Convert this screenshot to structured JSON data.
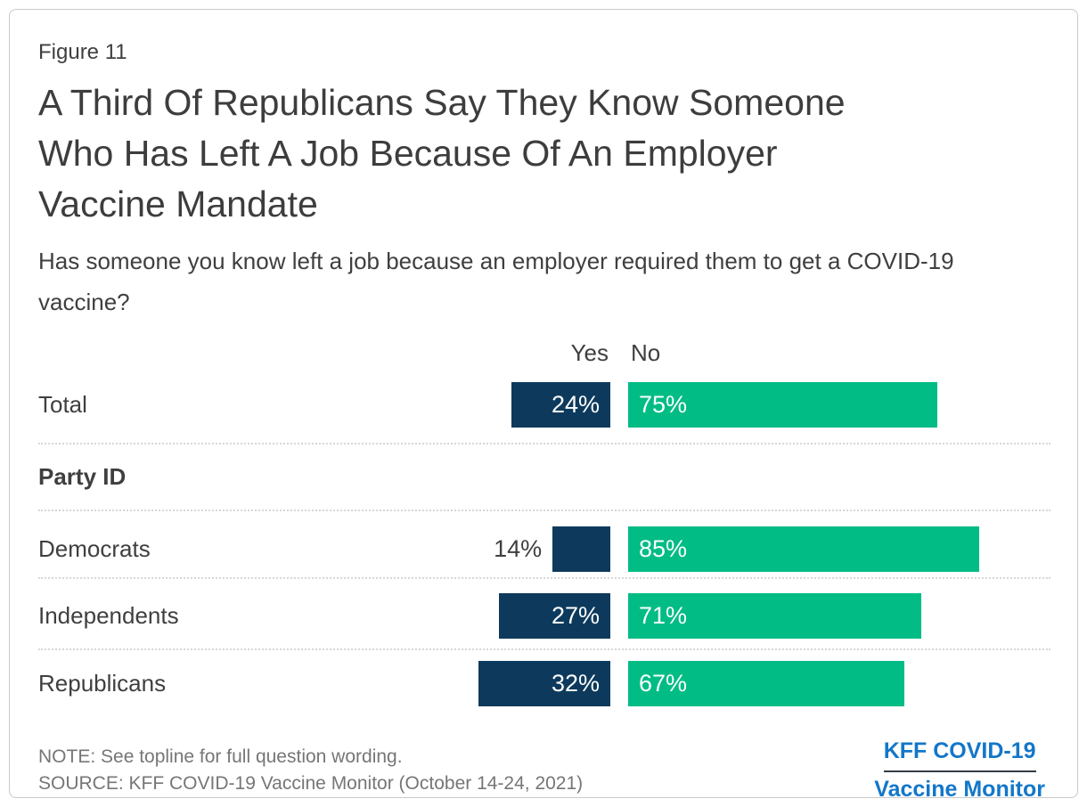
{
  "figure_label": "Figure 11",
  "title_lines": [
    "A Third Of Republicans Say They Know Someone",
    "Who Has Left A Job Because Of An Employer",
    "Vaccine Mandate"
  ],
  "subtitle": "Has someone you know left a job because an employer required them to get a COVID-19 vaccine?",
  "chart_data": {
    "type": "bar",
    "orientation": "horizontal-paired",
    "column_headers": {
      "yes": "Yes",
      "no": "No"
    },
    "series": [
      {
        "name": "Yes",
        "color": "#0d3a5c"
      },
      {
        "name": "No",
        "color": "#01bc85"
      }
    ],
    "value_format": "percent",
    "xlim": [
      0,
      100
    ],
    "rows": [
      {
        "label": "Total",
        "yes": 24,
        "no": 75,
        "yes_text": "24%",
        "no_text": "75%"
      },
      {
        "label": "Party ID",
        "section": true
      },
      {
        "label": "Democrats",
        "yes": 14,
        "no": 85,
        "yes_text": "14%",
        "no_text": "85%"
      },
      {
        "label": "Independents",
        "yes": 27,
        "no": 71,
        "yes_text": "27%",
        "no_text": "71%"
      },
      {
        "label": "Republicans",
        "yes": 32,
        "no": 67,
        "yes_text": "32%",
        "no_text": "67%"
      }
    ]
  },
  "footer": {
    "note": "NOTE: See topline for full question wording.",
    "source": "SOURCE: KFF COVID-19 Vaccine Monitor (October 14-24, 2021)",
    "logo_line1": "KFF COVID-19",
    "logo_line2": "Vaccine Monitor"
  },
  "colors": {
    "yes_bar": "#0d3a5c",
    "no_bar": "#01bc85",
    "logo_blue": "#1377c9",
    "text_dark": "#3d3d3d",
    "text_muted": "#767676"
  }
}
